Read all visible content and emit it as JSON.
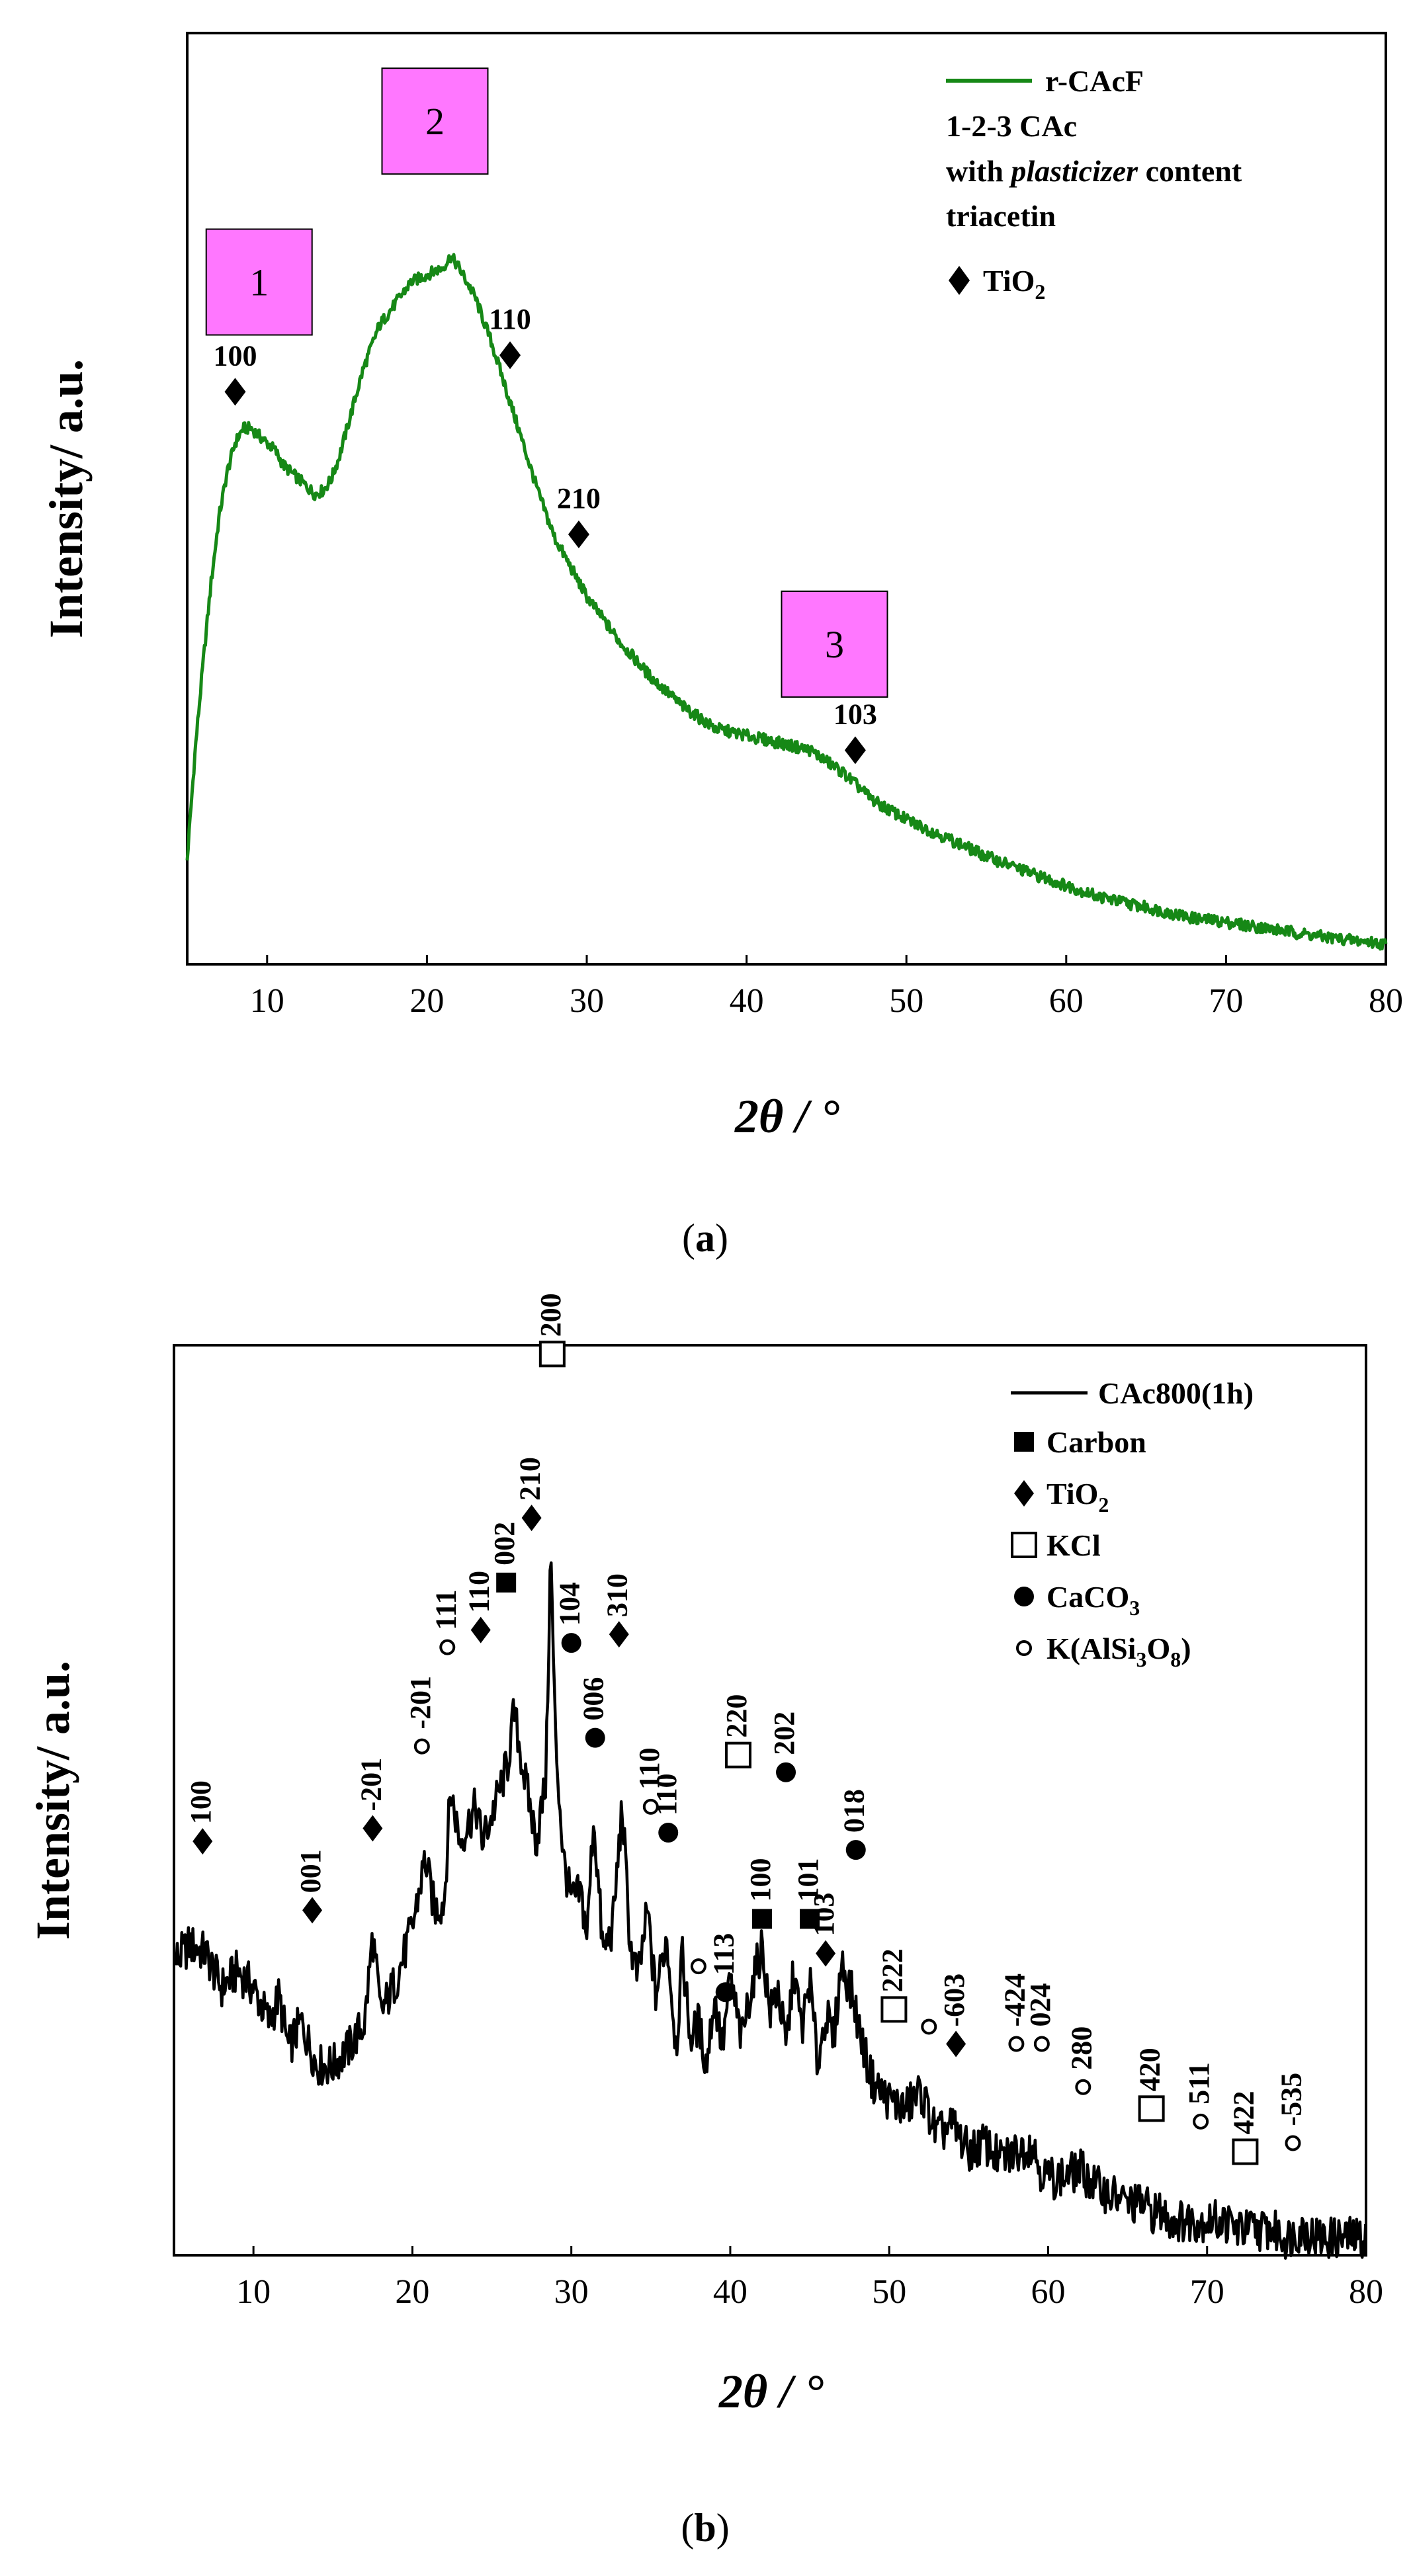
{
  "chart_data": [
    {
      "panel": "(a)",
      "panel_letter": "a",
      "type": "line",
      "xlabel": "2θ / °",
      "ylabel": "Intensity/ a.u.",
      "xlim": [
        5,
        80
      ],
      "ylim": [
        0,
        100
      ],
      "xticks": [
        "10",
        "20",
        "30",
        "40",
        "50",
        "60",
        "70",
        "80"
      ],
      "grid": false,
      "legend_position": "top-right",
      "series": [
        {
          "name": "r-CAcF",
          "color": "#168816",
          "x": [
            5,
            5.5,
            6,
            6.5,
            7,
            7.5,
            8,
            8.5,
            9,
            9.5,
            10,
            10.5,
            11,
            11.5,
            12,
            12.5,
            13,
            13.5,
            14,
            14.5,
            15,
            16,
            17,
            18,
            19,
            20,
            21,
            21.5,
            22,
            23,
            24,
            25,
            26,
            27,
            28,
            29,
            30,
            32,
            34,
            36,
            38,
            40,
            42,
            44,
            45,
            46,
            47,
            48,
            50,
            52,
            55,
            58,
            60,
            62,
            65,
            68,
            70,
            73,
            76,
            80
          ],
          "y": [
            13,
            28,
            40,
            51,
            60,
            66,
            70,
            72,
            72,
            71,
            70,
            69,
            67,
            66,
            65,
            64,
            63,
            63.5,
            65,
            68,
            72,
            80,
            86,
            89,
            92,
            93,
            94,
            95.5,
            94,
            90,
            84,
            77,
            70,
            63,
            57,
            53,
            49,
            43,
            38,
            34,
            31,
            30,
            29,
            28,
            26.5,
            25,
            23,
            21,
            18.5,
            16.5,
            13.5,
            11,
            9.5,
            8,
            6.5,
            5,
            4.5,
            3.5,
            2.5,
            1.5
          ]
        }
      ],
      "peaks": [
        {
          "label": "100",
          "x": 8,
          "y": 77
        },
        {
          "label": "110",
          "x": 25.2,
          "y": 82
        },
        {
          "label": "210",
          "x": 29.5,
          "y": 57.5
        },
        {
          "label": "103",
          "x": 46.8,
          "y": 28
        }
      ],
      "regions": [
        {
          "label": "1",
          "x": 9.5,
          "y": 92
        },
        {
          "label": "2",
          "x": 20.5,
          "y": 114
        },
        {
          "label": "3",
          "x": 45.5,
          "y": 42.5
        }
      ],
      "legend": {
        "line_label": "r-CAcF",
        "lines": [
          {
            "plain": "1-2-3 CAc"
          },
          {
            "before": "with ",
            "italic": "plasticizer",
            "after": " content"
          },
          {
            "plain": "triacetin"
          }
        ],
        "marker_label": "TiO",
        "marker_sub": "2"
      }
    },
    {
      "panel": "(b)",
      "panel_letter": "b",
      "type": "line",
      "xlabel": "2θ / °",
      "ylabel": "Intensity/ a.u.",
      "xlim": [
        5,
        80
      ],
      "ylim": [
        0,
        100
      ],
      "xticks": [
        "10",
        "20",
        "30",
        "40",
        "50",
        "60",
        "70",
        "80"
      ],
      "grid": false,
      "legend_position": "top-right",
      "series": [
        {
          "name": "CAc800(1h)",
          "color": "#000000",
          "x": [
            5,
            6,
            7,
            8,
            9,
            10,
            11,
            11.6,
            12.2,
            13,
            14,
            15,
            16,
            17,
            17.5,
            18,
            19,
            20,
            20.8,
            21.4,
            22,
            22.4,
            23,
            24,
            24.4,
            25,
            26,
            26.4,
            27,
            27.8,
            28.4,
            28.7,
            29,
            29.5,
            30,
            30.6,
            31,
            31.4,
            32,
            32.6,
            33.2,
            33.7,
            34.2,
            34.8,
            35.3,
            36,
            36.6,
            37,
            37.5,
            38,
            38.5,
            39,
            39.5,
            40,
            40.7,
            41.2,
            42,
            42.5,
            43,
            43.5,
            44,
            44.5,
            45,
            45.5,
            46,
            46.5,
            47,
            47.7,
            48.5,
            49,
            50,
            51,
            52,
            53,
            54,
            55,
            56,
            57,
            58,
            59,
            59.5,
            60,
            61,
            62,
            63,
            64,
            65,
            66,
            66.5,
            67,
            68,
            69,
            70,
            71,
            72,
            73,
            74,
            75,
            76,
            77,
            78,
            79,
            80
          ],
          "y": [
            34,
            36,
            35,
            31,
            33,
            31,
            27,
            30,
            24,
            27,
            22,
            22,
            24,
            27,
            37,
            28,
            32,
            38,
            46,
            40,
            41,
            54,
            48,
            52,
            48,
            51,
            57,
            63,
            56,
            48,
            55,
            82,
            60,
            46,
            41,
            42,
            37,
            51,
            35,
            38,
            52,
            36,
            32,
            40,
            30,
            37,
            24,
            35,
            25,
            27,
            22,
            30,
            24,
            32,
            25,
            30,
            36,
            28,
            31,
            24,
            33,
            26,
            32,
            22,
            28,
            25,
            34,
            30,
            23,
            20,
            18,
            17,
            19,
            14,
            15,
            12,
            13,
            11,
            12,
            13,
            10,
            9,
            9,
            10,
            8,
            7,
            6,
            6,
            5,
            5,
            4,
            4,
            4,
            4,
            3,
            3,
            3,
            2,
            3,
            2,
            2,
            2,
            2
          ]
        }
      ],
      "markers": [
        {
          "phase": "TiO2",
          "label": "100",
          "x": 6.8,
          "y": 48
        },
        {
          "phase": "TiO2",
          "label": "-201",
          "x": 17.5,
          "y": 49.5
        },
        {
          "phase": "TiO2",
          "label": "110",
          "x": 24.3,
          "y": 72.5
        },
        {
          "phase": "TiO2",
          "label": "210",
          "x": 27.5,
          "y": 85.5
        },
        {
          "phase": "TiO2",
          "label": "310",
          "x": 33,
          "y": 72
        },
        {
          "phase": "TiO2",
          "label": "103",
          "x": 46,
          "y": 35
        },
        {
          "phase": "TiO2",
          "label": "-603",
          "x": 54.2,
          "y": 24.5
        },
        {
          "phase": "TiO2",
          "label": "001",
          "x": 13.7,
          "y": 40
        },
        {
          "phase": "Carbon",
          "label": "002",
          "x": 25.9,
          "y": 78
        },
        {
          "phase": "Carbon",
          "label": "100",
          "x": 42,
          "y": 39
        },
        {
          "phase": "Carbon",
          "label": "101",
          "x": 45,
          "y": 39
        },
        {
          "phase": "KCl",
          "label": "200",
          "x": 28.8,
          "y": 104.5
        },
        {
          "phase": "KCl",
          "label": "220",
          "x": 40.5,
          "y": 58
        },
        {
          "phase": "KCl",
          "label": "222",
          "x": 50.3,
          "y": 28.5
        },
        {
          "phase": "KCl",
          "label": "420",
          "x": 66.5,
          "y": 17
        },
        {
          "phase": "KCl",
          "label": "422",
          "x": 72.4,
          "y": 12
        },
        {
          "phase": "CaCO3",
          "label": "104",
          "x": 30,
          "y": 71
        },
        {
          "phase": "CaCO3",
          "label": "006",
          "x": 31.5,
          "y": 60
        },
        {
          "phase": "CaCO3",
          "label": "110",
          "x": 36.1,
          "y": 49
        },
        {
          "phase": "CaCO3",
          "label": "113",
          "x": 39.7,
          "y": 30.5
        },
        {
          "phase": "CaCO3",
          "label": "202",
          "x": 43.5,
          "y": 56
        },
        {
          "phase": "CaCO3",
          "label": "018",
          "x": 47.9,
          "y": 47
        },
        {
          "phase": "K(AlSi3O8)",
          "label": "-201",
          "x": 20.6,
          "y": 59
        },
        {
          "phase": "K(AlSi3O8)",
          "label": "111",
          "x": 22.2,
          "y": 70.5
        },
        {
          "phase": "K(AlSi3O8)",
          "label": "110",
          "x": 35,
          "y": 52
        },
        {
          "phase": "K(AlSi3O8)",
          "label": "-424",
          "x": 58,
          "y": 24.5
        },
        {
          "phase": "K(AlSi3O8)",
          "label": "024",
          "x": 59.6,
          "y": 24.5
        },
        {
          "phase": "K(AlSi3O8)",
          "label": "280",
          "x": 62.2,
          "y": 19.5
        },
        {
          "phase": "K(AlSi3O8)",
          "label": "511",
          "x": 69.6,
          "y": 15.5
        },
        {
          "phase": "K(AlSi3O8)",
          "label": "-535",
          "x": 75.4,
          "y": 13
        },
        {
          "phase": "K(AlSi3O8)",
          "label": "",
          "x": 38,
          "y": 33.5
        },
        {
          "phase": "K(AlSi3O8)",
          "label": "",
          "x": 52.5,
          "y": 26.5
        }
      ],
      "legend": {
        "line_label": "CAc800(1h)",
        "entries": [
          {
            "phase": "Carbon",
            "name": "Carbon",
            "sub": "",
            "name2": "",
            "sub2": "",
            "name3": ""
          },
          {
            "phase": "TiO2",
            "name": "TiO",
            "sub": "2",
            "name2": "",
            "sub2": "",
            "name3": ""
          },
          {
            "phase": "KCl",
            "name": "KCl",
            "sub": "",
            "name2": "",
            "sub2": "",
            "name3": ""
          },
          {
            "phase": "CaCO3",
            "name": "CaCO",
            "sub": "3",
            "name2": "",
            "sub2": "",
            "name3": ""
          },
          {
            "phase": "K(AlSi3O8)",
            "name": "K(AlSi",
            "sub": "3",
            "name2": "O",
            "sub2": "8",
            "name3": ")"
          }
        ]
      }
    }
  ]
}
